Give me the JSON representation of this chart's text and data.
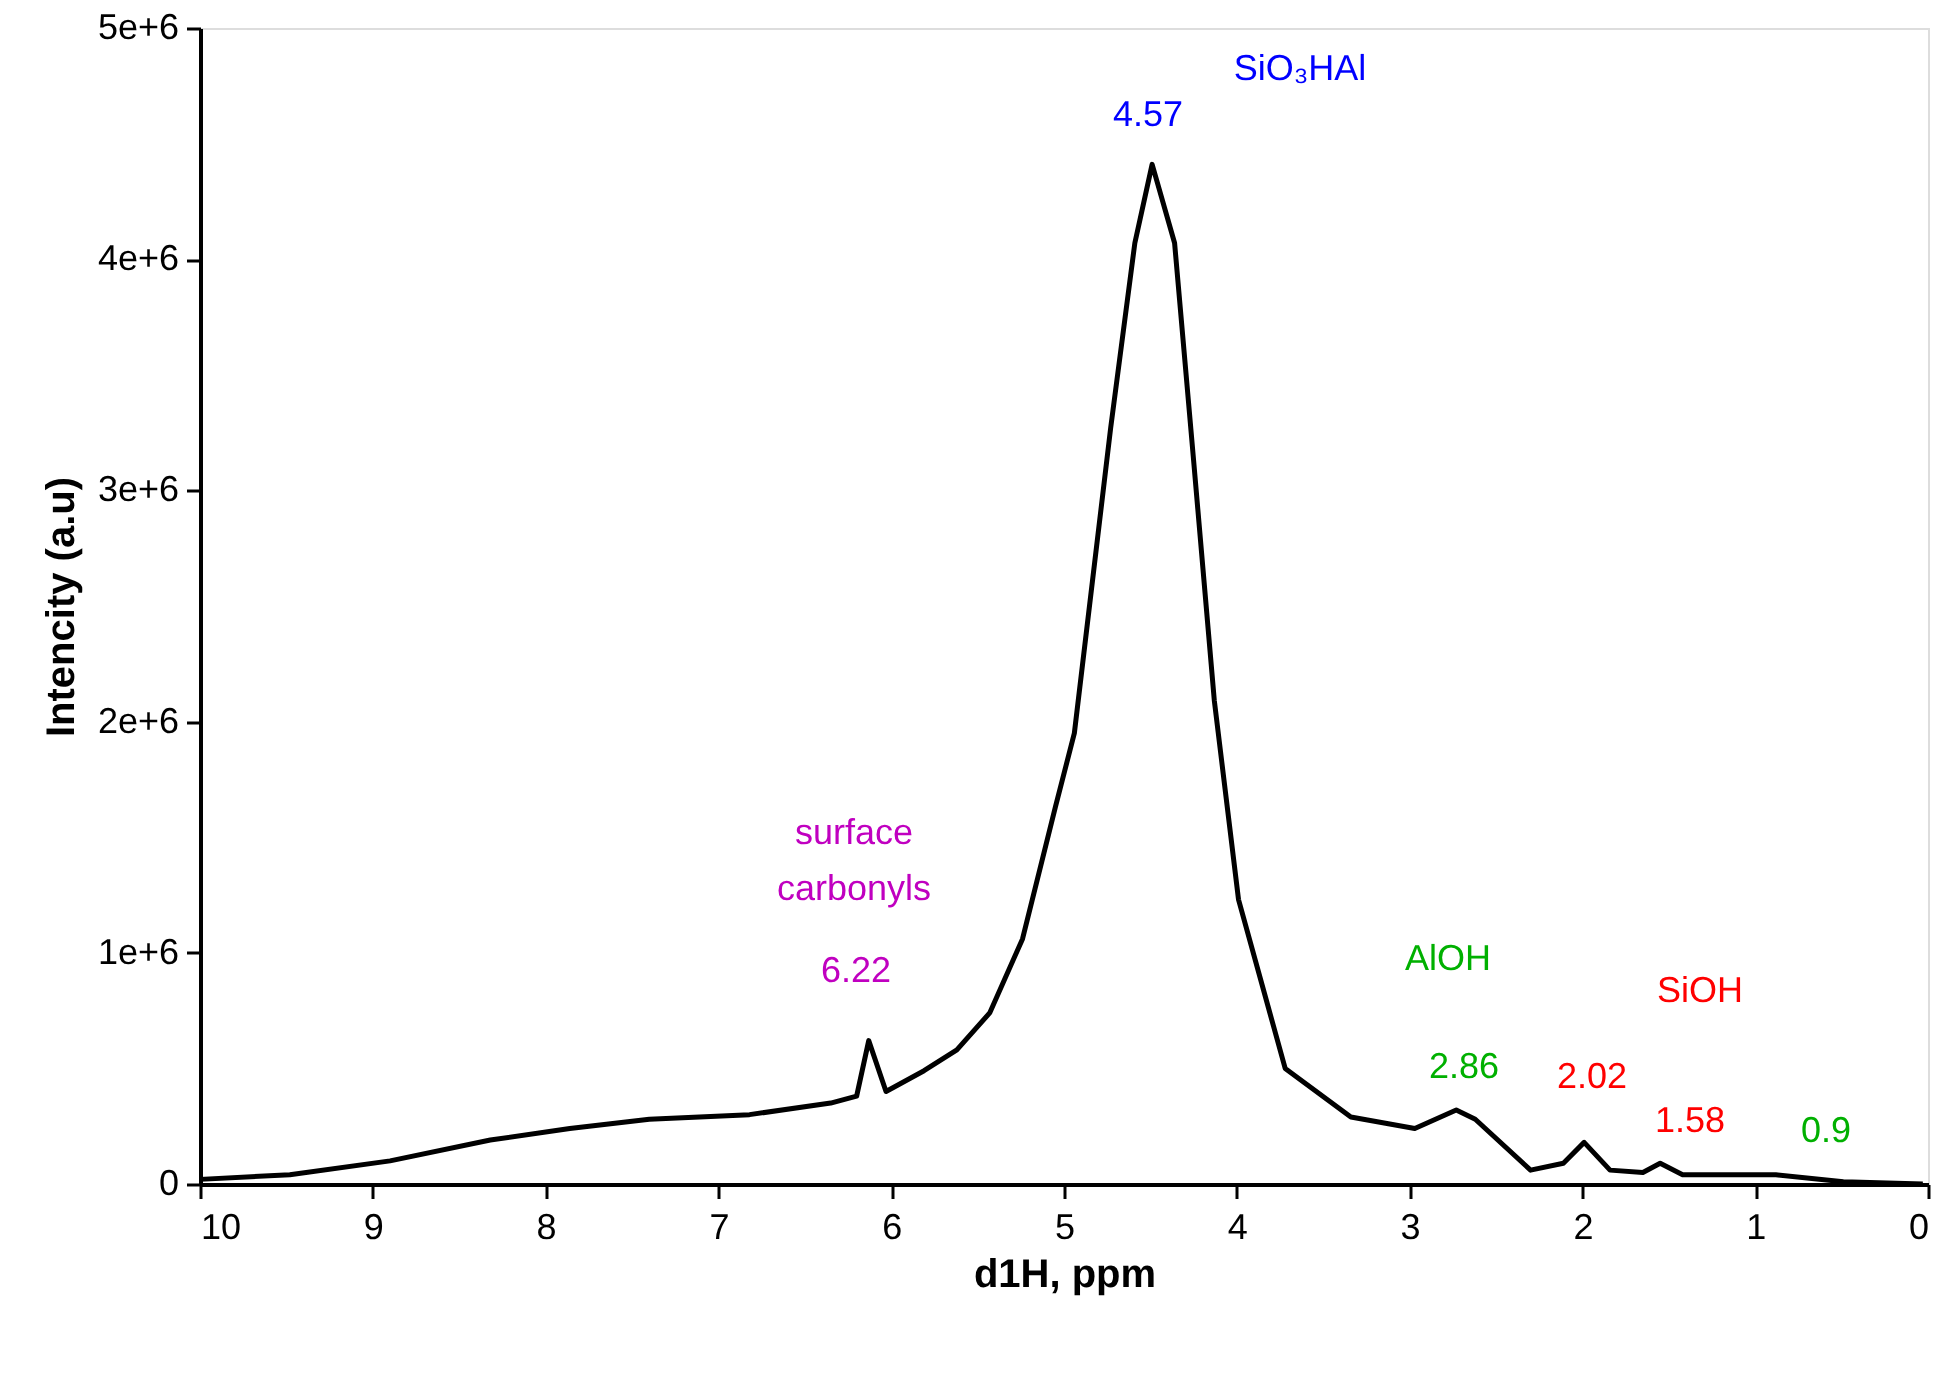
{
  "chart_data": {
    "type": "line",
    "xlabel": "d1H, ppm",
    "ylabel": "Intencity (a.u)",
    "xlim": [
      10,
      0
    ],
    "xticks": [
      10,
      9,
      8,
      7,
      6,
      5,
      4,
      3,
      2,
      1,
      0
    ],
    "ylim": [
      0,
      5000000
    ],
    "yticks": [
      0,
      {
        "value": 1000000,
        "label": "1e+6"
      },
      {
        "value": 2000000,
        "label": "2e+6"
      },
      {
        "value": 3000000,
        "label": "3e+6"
      },
      {
        "value": 4000000,
        "label": "4e+6"
      },
      {
        "value": 5000000,
        "label": "5e+6"
      }
    ],
    "grid": false,
    "marker": "none",
    "line_style": "solid",
    "series": [
      {
        "color": "#000000",
        "x": [
          10,
          9.48,
          8.9,
          8.32,
          7.86,
          7.4,
          6.82,
          6.35,
          6.2,
          6.13,
          6.03,
          5.81,
          5.62,
          5.43,
          5.24,
          5.05,
          4.94,
          4.73,
          4.59,
          4.49,
          4.36,
          4.25,
          4.13,
          3.99,
          3.72,
          3.34,
          2.97,
          2.73,
          2.62,
          2.3,
          2.11,
          1.99,
          1.84,
          1.65,
          1.55,
          1.42,
          0.88,
          0.49,
          0.03
        ],
        "values": [
          20000,
          40000,
          100000,
          190000,
          240000,
          280000,
          300000,
          350000,
          380000,
          620000,
          400000,
          490000,
          580000,
          740000,
          1060000,
          1630000,
          1950000,
          3270000,
          4070000,
          4410000,
          4070000,
          3130000,
          2090000,
          1230000,
          500000,
          290000,
          240000,
          320000,
          280000,
          60000,
          90000,
          180000,
          60000,
          50000,
          90000,
          40000,
          40000,
          10000,
          0
        ]
      }
    ],
    "annotations": [
      "SiO₃HAl",
      "4.57",
      "surface carbonyls",
      "6.22",
      "AlOH",
      "2.86",
      "SiOH",
      "2.02",
      "1.58",
      "0.9"
    ]
  }
}
